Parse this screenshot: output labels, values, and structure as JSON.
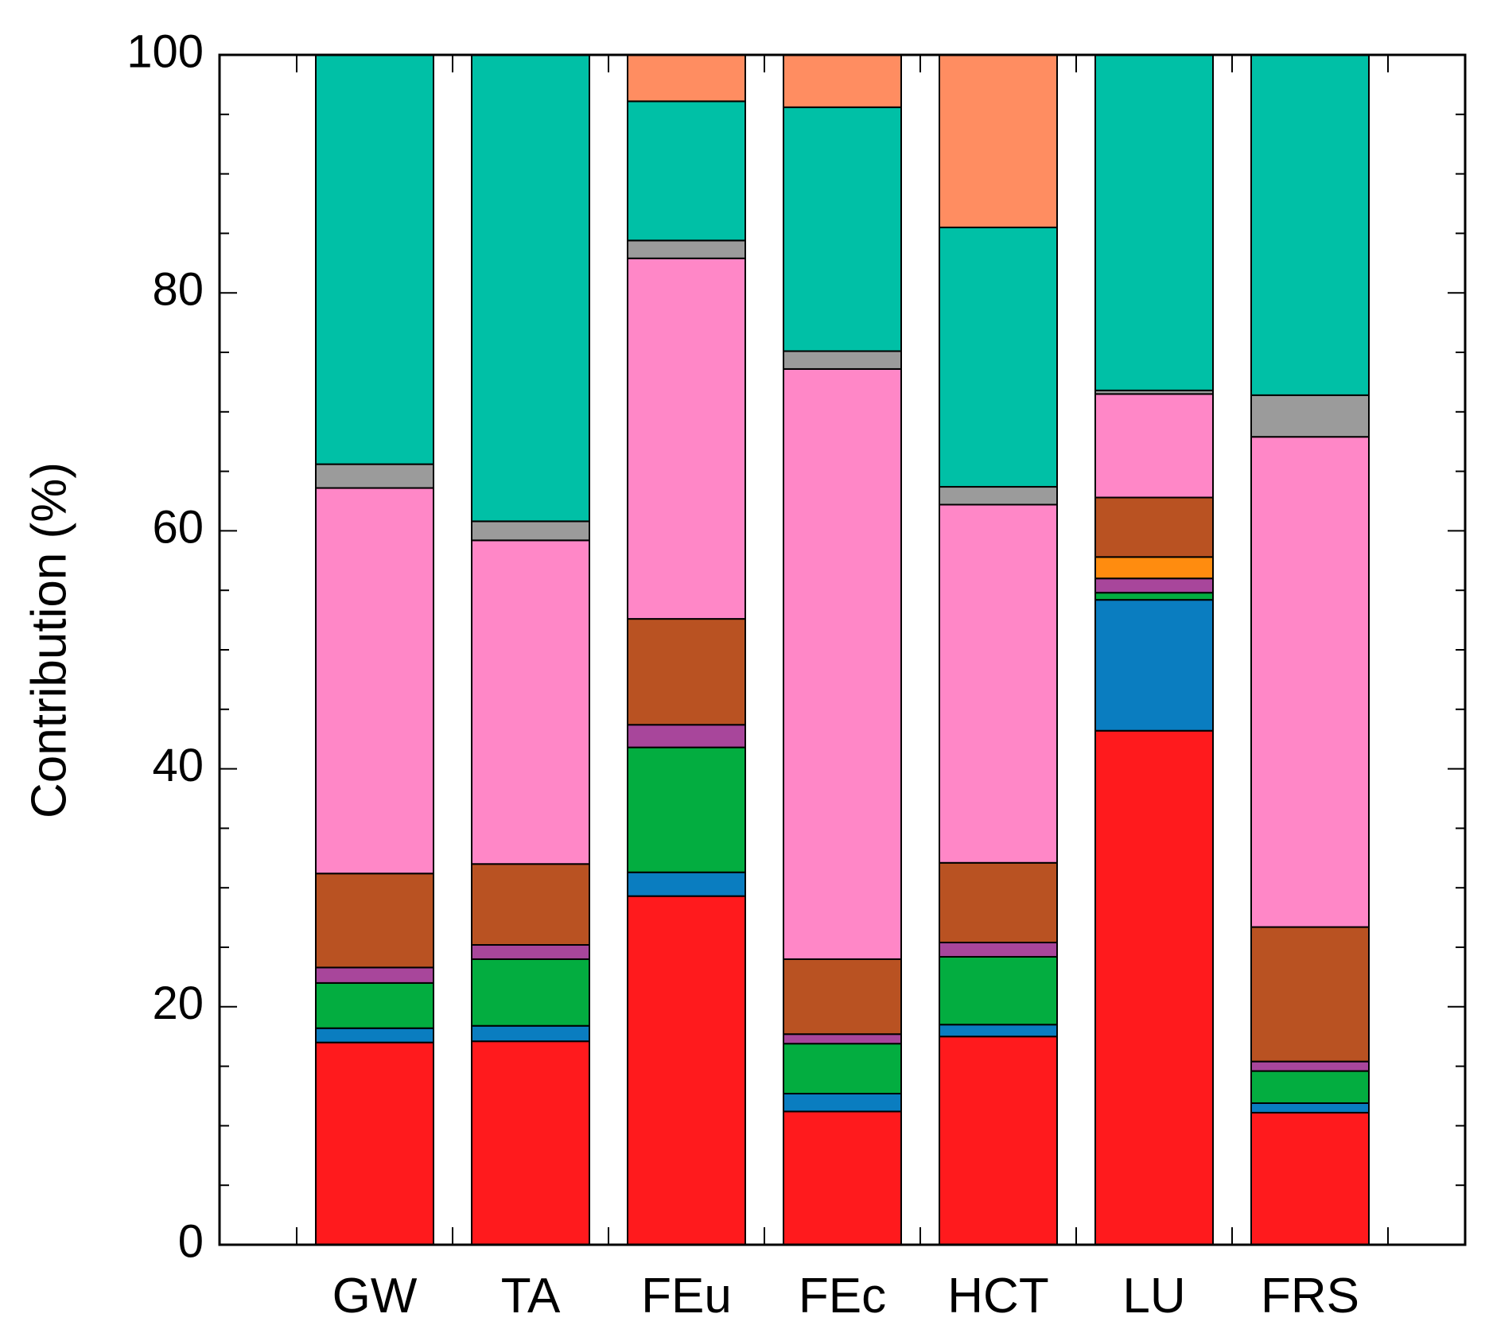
{
  "chart_data": {
    "type": "bar",
    "stacked": true,
    "title": "",
    "xlabel": "",
    "ylabel": "Contribution (%)",
    "ylim": [
      0,
      100
    ],
    "yticks": [
      0,
      20,
      40,
      60,
      80,
      100
    ],
    "y_minor_step": 5,
    "grid": false,
    "categories": [
      "GW",
      "TA",
      "FEu",
      "FEc",
      "HCT",
      "LU",
      "FRS"
    ],
    "series": [
      {
        "name": "red",
        "color": "#ff1a1d",
        "values": [
          17.0,
          17.1,
          29.3,
          11.2,
          17.5,
          43.2,
          11.1
        ]
      },
      {
        "name": "blue",
        "color": "#0a7dc0",
        "values": [
          1.2,
          1.3,
          2.0,
          1.5,
          1.0,
          11.0,
          0.8
        ]
      },
      {
        "name": "green",
        "color": "#03ad40",
        "values": [
          3.8,
          5.6,
          10.5,
          4.2,
          5.7,
          0.6,
          2.7
        ]
      },
      {
        "name": "purple",
        "color": "#a8469b",
        "values": [
          1.3,
          1.2,
          1.9,
          0.8,
          1.2,
          1.2,
          0.8
        ]
      },
      {
        "name": "orange",
        "color": "#ff8c0f",
        "values": [
          0,
          0,
          0,
          0,
          0,
          1.8,
          0
        ]
      },
      {
        "name": "brown",
        "color": "#b95222",
        "values": [
          7.9,
          6.8,
          8.9,
          6.3,
          6.7,
          5.0,
          11.3
        ]
      },
      {
        "name": "pink",
        "color": "#ff87c7",
        "values": [
          32.4,
          27.2,
          30.3,
          49.6,
          30.1,
          8.7,
          41.2
        ]
      },
      {
        "name": "gray",
        "color": "#9b9b9b",
        "values": [
          2.0,
          1.6,
          1.5,
          1.5,
          1.5,
          0.3,
          3.5
        ]
      },
      {
        "name": "teal",
        "color": "#00c0a6",
        "values": [
          34.4,
          39.2,
          11.7,
          20.5,
          21.8,
          28.2,
          28.6
        ]
      },
      {
        "name": "salmon",
        "color": "#ff8d61",
        "values": [
          0,
          0,
          3.9,
          4.4,
          14.5,
          0,
          0
        ]
      }
    ]
  }
}
